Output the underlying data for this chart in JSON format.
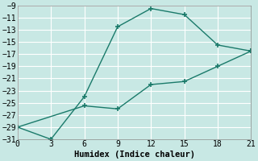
{
  "line1_x": [
    0,
    3,
    6,
    9,
    12,
    15,
    18,
    21
  ],
  "line1_y": [
    -29,
    -31,
    -24,
    -12.5,
    -9.5,
    -10.5,
    -15.5,
    -16.5
  ],
  "line2_x": [
    0,
    6,
    9,
    12,
    15,
    18,
    21
  ],
  "line2_y": [
    -29,
    -25.5,
    -26,
    -22,
    -21.5,
    -19,
    -16.5
  ],
  "line_color": "#1a7a6a",
  "bg_color": "#c8e8e4",
  "grid_color": "#ffffff",
  "xlabel": "Humidex (Indice chaleur)",
  "xlim": [
    0,
    21
  ],
  "ylim": [
    -31,
    -9
  ],
  "xticks": [
    0,
    3,
    6,
    9,
    12,
    15,
    18,
    21
  ],
  "yticks": [
    -9,
    -11,
    -13,
    -15,
    -17,
    -19,
    -21,
    -23,
    -25,
    -27,
    -29,
    -31
  ],
  "marker": "+",
  "markersize": 4,
  "linewidth": 1.0,
  "font_family": "monospace",
  "tick_fontsize": 7,
  "label_fontsize": 7.5
}
